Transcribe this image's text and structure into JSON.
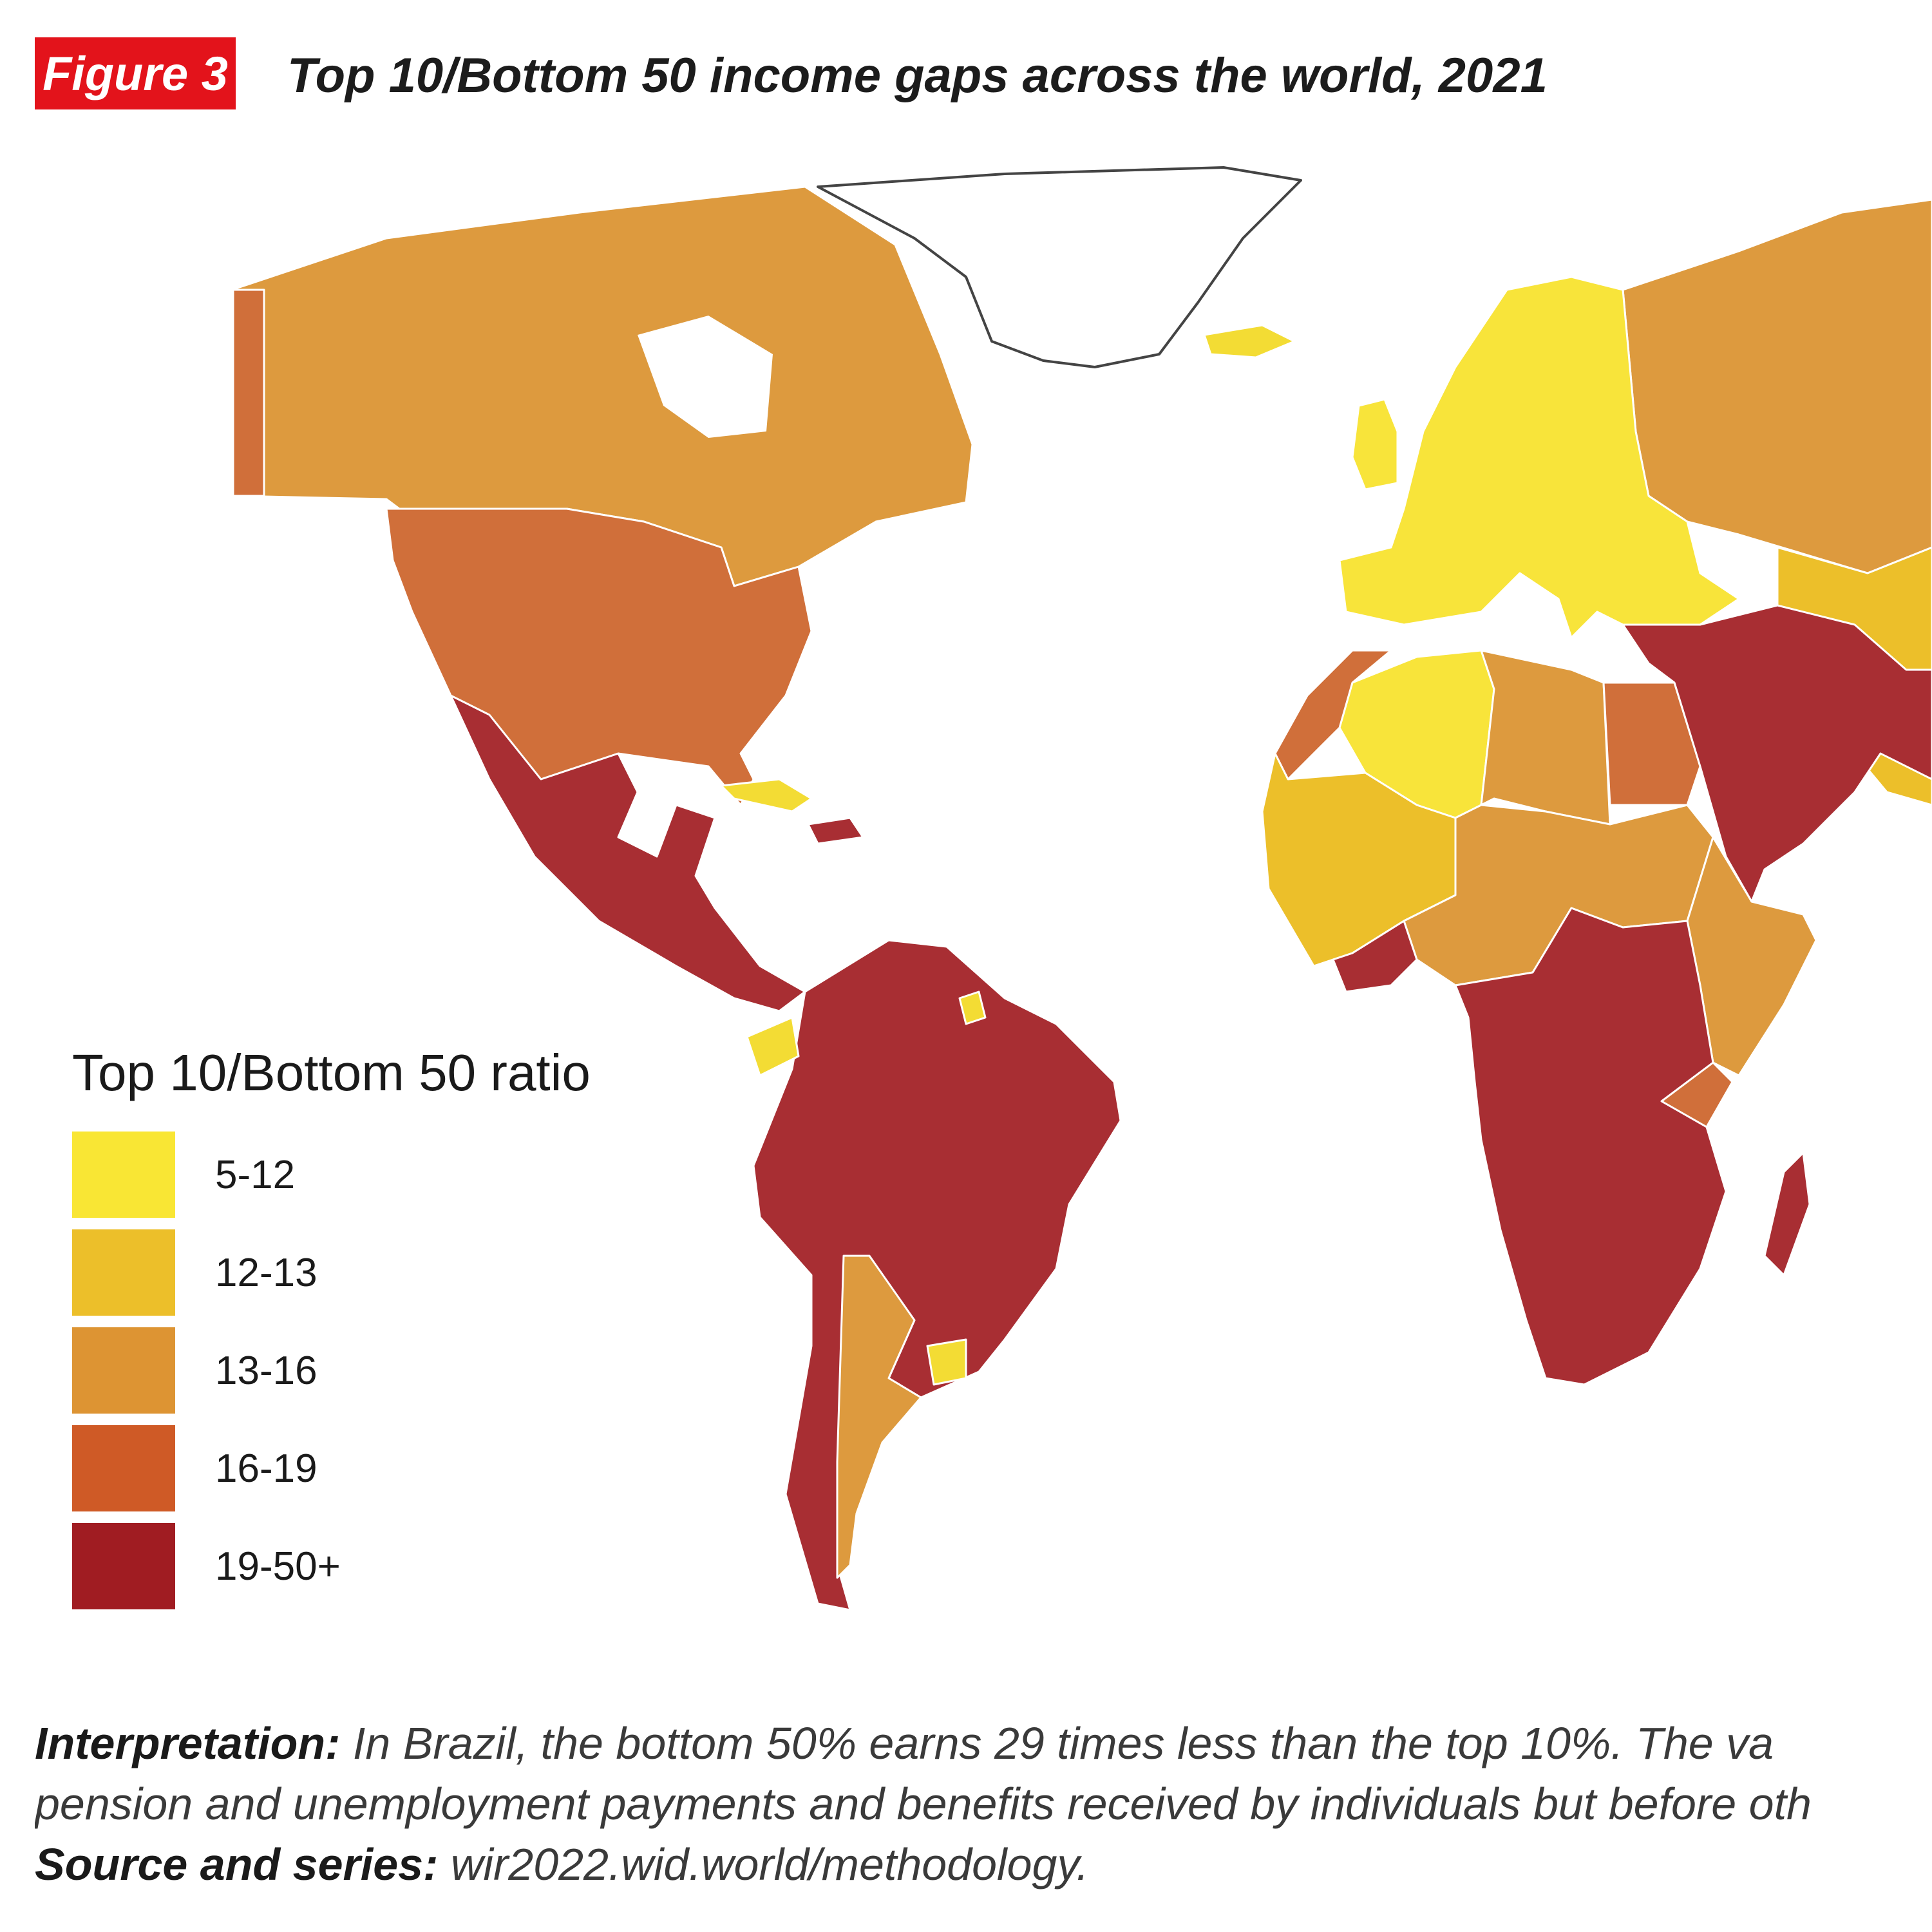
{
  "figure_label": "Figure 3",
  "title": "Top 10/Bottom 50 income gaps across the world, 2021",
  "legend": {
    "title": "Top 10/Bottom 50 ratio",
    "items": [
      {
        "label": "5-12",
        "color": "#f9e634"
      },
      {
        "label": "12-13",
        "color": "#ecbf2a"
      },
      {
        "label": "13-16",
        "color": "#dd9433"
      },
      {
        "label": "16-19",
        "color": "#cf5a26"
      },
      {
        "label": "19-50+",
        "color": "#a01c22"
      }
    ]
  },
  "map": {
    "regions": [
      {
        "name": "canada",
        "color": "#dd9a3e"
      },
      {
        "name": "alaska",
        "color": "#d06f3a"
      },
      {
        "name": "united-states",
        "color": "#d06f3a"
      },
      {
        "name": "mexico-central-america",
        "color": "#a82e33"
      },
      {
        "name": "caribbean",
        "color": "#a82e33"
      },
      {
        "name": "cuba",
        "color": "#f3dc34"
      },
      {
        "name": "south-america",
        "color": "#a82e33"
      },
      {
        "name": "ecuador",
        "color": "#f3dc34"
      },
      {
        "name": "french-guiana",
        "color": "#f3dc34"
      },
      {
        "name": "argentina",
        "color": "#dd9a3e"
      },
      {
        "name": "uruguay",
        "color": "#f3dc34"
      },
      {
        "name": "greenland",
        "color": "#ffffff"
      },
      {
        "name": "iceland",
        "color": "#f3dc34"
      },
      {
        "name": "europe",
        "color": "#f8e43a"
      },
      {
        "name": "russia",
        "color": "#dd9a3e"
      },
      {
        "name": "north-africa",
        "color": "#f8e43a"
      },
      {
        "name": "libya",
        "color": "#dd9a3e"
      },
      {
        "name": "egypt",
        "color": "#d06f3a"
      },
      {
        "name": "morocco",
        "color": "#d06f3a"
      },
      {
        "name": "west-africa",
        "color": "#ecbf2a"
      },
      {
        "name": "sahel",
        "color": "#dd9a3e"
      },
      {
        "name": "gulf-of-guinea",
        "color": "#a82e33"
      },
      {
        "name": "central-southern-africa",
        "color": "#a82e33"
      },
      {
        "name": "east-africa",
        "color": "#dd9a3e"
      },
      {
        "name": "kenya",
        "color": "#d06f3a"
      },
      {
        "name": "middle-east",
        "color": "#a82e33"
      },
      {
        "name": "central-asia",
        "color": "#ecbf2a"
      },
      {
        "name": "madagascar",
        "color": "#a82e33"
      }
    ]
  },
  "interpretation": {
    "label": "Interpretation:",
    "line1": "In Brazil, the bottom 50% earns 29 times less than the top 10%. The va",
    "line2": "pension and unemployment payments and benefits received by individuals but before oth"
  },
  "source": {
    "label": "Source and series:",
    "text": "wir2022.wid.world/methodology."
  }
}
